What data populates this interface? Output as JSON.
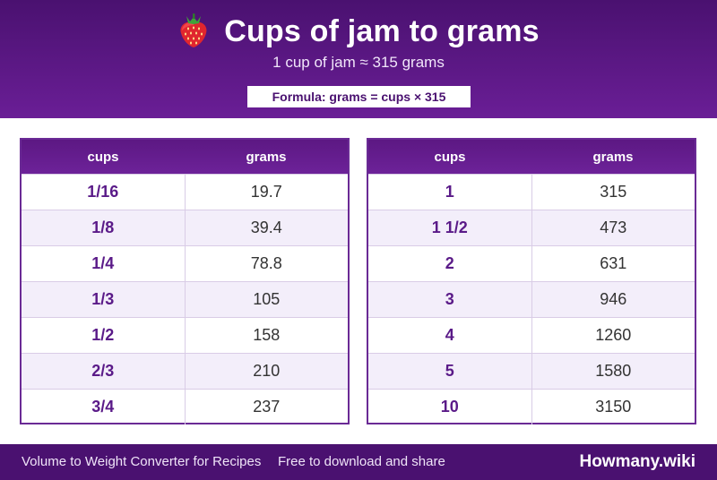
{
  "header": {
    "icon": "strawberry-icon",
    "title": "Cups of jam to grams",
    "subtitle": "1 cup of jam ≈ 315 grams",
    "formula": "Formula: grams = cups × 315"
  },
  "table_left": {
    "headers": [
      "cups",
      "grams"
    ],
    "rows": [
      {
        "cups": "1/16",
        "grams": "19.7"
      },
      {
        "cups": "1/8",
        "grams": "39.4"
      },
      {
        "cups": "1/4",
        "grams": "78.8"
      },
      {
        "cups": "1/3",
        "grams": "105"
      },
      {
        "cups": "1/2",
        "grams": "158"
      },
      {
        "cups": "2/3",
        "grams": "210"
      },
      {
        "cups": "3/4",
        "grams": "237"
      }
    ]
  },
  "table_right": {
    "headers": [
      "cups",
      "grams"
    ],
    "rows": [
      {
        "cups": "1",
        "grams": "315"
      },
      {
        "cups": "1 1/2",
        "grams": "473"
      },
      {
        "cups": "2",
        "grams": "631"
      },
      {
        "cups": "3",
        "grams": "946"
      },
      {
        "cups": "4",
        "grams": "1260"
      },
      {
        "cups": "5",
        "grams": "1580"
      },
      {
        "cups": "10",
        "grams": "3150"
      }
    ]
  },
  "footer": {
    "left": "Volume to Weight Converter for Recipes",
    "middle": "Free to download and share",
    "brand": "Howmany.wiki"
  },
  "colors": {
    "primary": "#4a1170",
    "accent": "#6a1e96",
    "cups_text": "#5a1a88",
    "alt_row": "#f3eefa"
  }
}
